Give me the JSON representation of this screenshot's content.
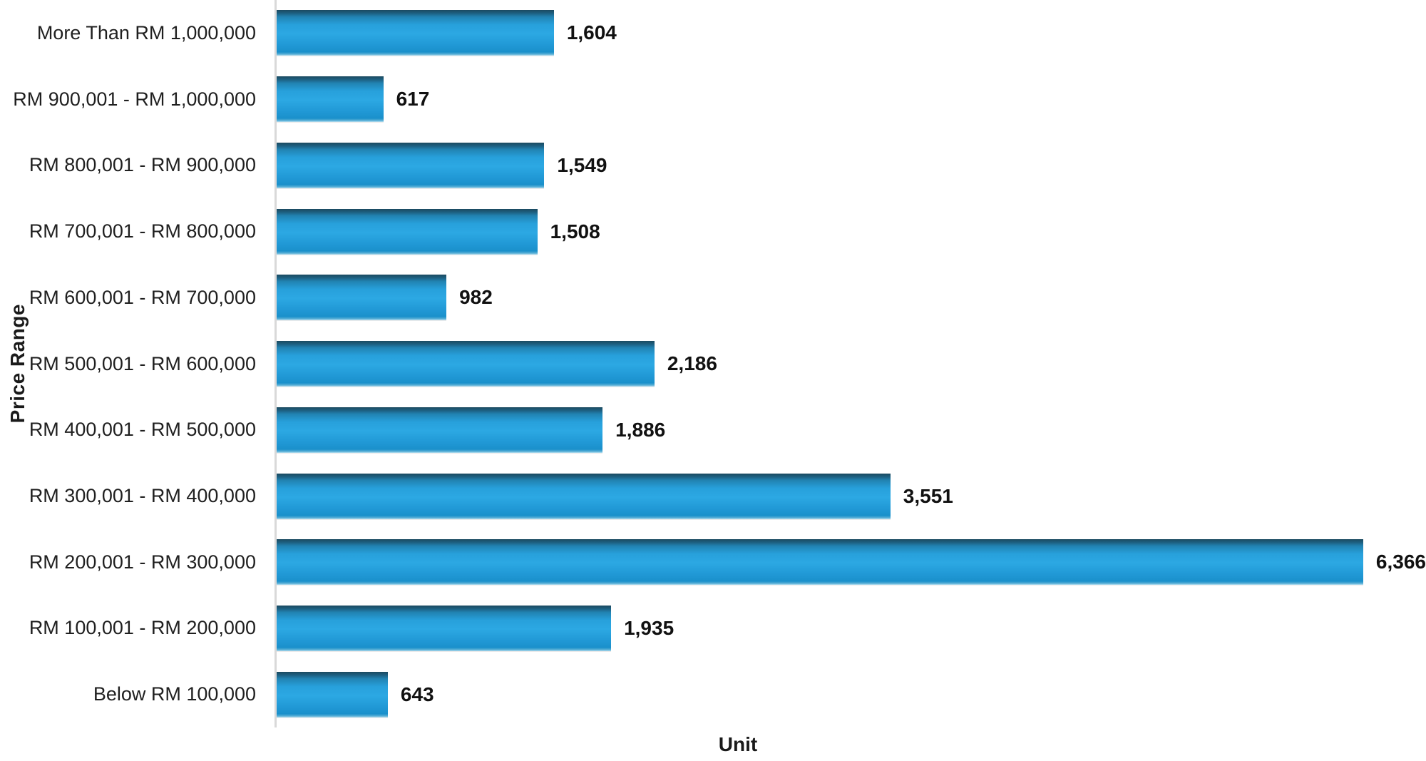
{
  "chart_data": {
    "type": "bar",
    "orientation": "horizontal",
    "title": "",
    "xlabel": "Unit",
    "ylabel": "Price Range",
    "categories": [
      "More Than RM 1,000,000",
      "RM 900,001 - RM 1,000,000",
      "RM 800,001 - RM 900,000",
      "RM 700,001 - RM 800,000",
      "RM 600,001 - RM 700,000",
      "RM 500,001 - RM 600,000",
      "RM 400,001 - RM 500,000",
      "RM 300,001 - RM 400,000",
      "RM 200,001 - RM 300,000",
      "RM 100,001 - RM 200,000",
      "Below RM 100,000"
    ],
    "values": [
      1604,
      617,
      1549,
      1508,
      982,
      2186,
      1886,
      3551,
      6366,
      1935,
      643
    ],
    "value_labels": [
      "1,604",
      "617",
      "1,549",
      "1,508",
      "982",
      "2,186",
      "1,886",
      "3,551",
      "6,366",
      "1,935",
      "643"
    ],
    "xlim": [
      0,
      6650
    ],
    "grid": false,
    "legend": false,
    "bar_color": "#1E9BD7",
    "bar_color_dark": "#1B4A60",
    "axis_line_color": "#D9D9D9",
    "text_color": "#1A1A1A"
  }
}
